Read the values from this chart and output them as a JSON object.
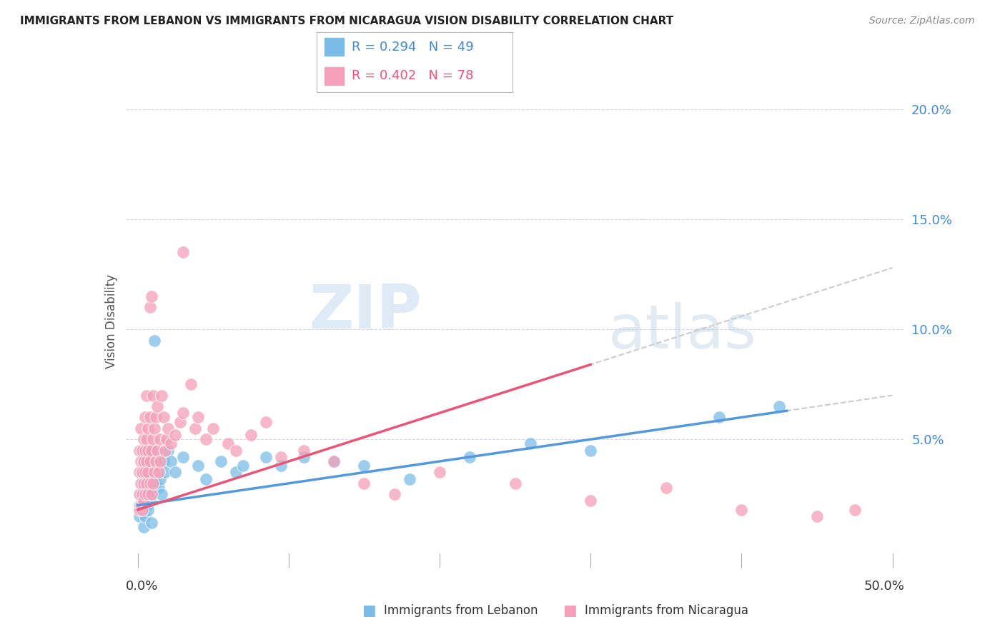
{
  "title": "IMMIGRANTS FROM LEBANON VS IMMIGRANTS FROM NICARAGUA VISION DISABILITY CORRELATION CHART",
  "source": "Source: ZipAtlas.com",
  "ylabel": "Vision Disability",
  "xlim": [
    0.0,
    0.5
  ],
  "ylim": [
    0.0,
    0.21
  ],
  "yticks": [
    0.0,
    0.05,
    0.1,
    0.15,
    0.2
  ],
  "ytick_labels": [
    "",
    "5.0%",
    "10.0%",
    "15.0%",
    "20.0%"
  ],
  "legend_r1": "R = 0.294",
  "legend_n1": "N = 49",
  "legend_r2": "R = 0.402",
  "legend_n2": "N = 78",
  "lebanon_color": "#7bbde8",
  "nicaragua_color": "#f4a0b8",
  "trendline_leb_color": "#5599dd",
  "trendline_nic_color": "#e85577",
  "trendline_dash_color": "#cccccc",
  "watermark_color": "#d5e8f5",
  "leb_pts": [
    [
      0.001,
      0.02
    ],
    [
      0.001,
      0.015
    ],
    [
      0.002,
      0.025
    ],
    [
      0.002,
      0.018
    ],
    [
      0.003,
      0.03
    ],
    [
      0.003,
      0.022
    ],
    [
      0.004,
      0.035
    ],
    [
      0.004,
      0.01
    ],
    [
      0.005,
      0.04
    ],
    [
      0.005,
      0.025
    ],
    [
      0.005,
      0.015
    ],
    [
      0.006,
      0.03
    ],
    [
      0.006,
      0.02
    ],
    [
      0.007,
      0.035
    ],
    [
      0.007,
      0.018
    ],
    [
      0.008,
      0.04
    ],
    [
      0.008,
      0.022
    ],
    [
      0.009,
      0.03
    ],
    [
      0.009,
      0.012
    ],
    [
      0.01,
      0.045
    ],
    [
      0.01,
      0.025
    ],
    [
      0.011,
      0.095
    ],
    [
      0.012,
      0.03
    ],
    [
      0.013,
      0.038
    ],
    [
      0.014,
      0.028
    ],
    [
      0.015,
      0.032
    ],
    [
      0.016,
      0.025
    ],
    [
      0.017,
      0.04
    ],
    [
      0.018,
      0.035
    ],
    [
      0.02,
      0.045
    ],
    [
      0.022,
      0.04
    ],
    [
      0.025,
      0.035
    ],
    [
      0.03,
      0.042
    ],
    [
      0.04,
      0.038
    ],
    [
      0.045,
      0.032
    ],
    [
      0.055,
      0.04
    ],
    [
      0.065,
      0.035
    ],
    [
      0.07,
      0.038
    ],
    [
      0.085,
      0.042
    ],
    [
      0.095,
      0.038
    ],
    [
      0.11,
      0.042
    ],
    [
      0.13,
      0.04
    ],
    [
      0.15,
      0.038
    ],
    [
      0.18,
      0.032
    ],
    [
      0.22,
      0.042
    ],
    [
      0.26,
      0.048
    ],
    [
      0.3,
      0.045
    ],
    [
      0.385,
      0.06
    ],
    [
      0.425,
      0.065
    ]
  ],
  "nic_pts": [
    [
      0.001,
      0.018
    ],
    [
      0.001,
      0.025
    ],
    [
      0.001,
      0.035
    ],
    [
      0.001,
      0.045
    ],
    [
      0.002,
      0.02
    ],
    [
      0.002,
      0.03
    ],
    [
      0.002,
      0.04
    ],
    [
      0.002,
      0.055
    ],
    [
      0.003,
      0.025
    ],
    [
      0.003,
      0.035
    ],
    [
      0.003,
      0.045
    ],
    [
      0.003,
      0.018
    ],
    [
      0.004,
      0.03
    ],
    [
      0.004,
      0.04
    ],
    [
      0.004,
      0.05
    ],
    [
      0.004,
      0.022
    ],
    [
      0.005,
      0.035
    ],
    [
      0.005,
      0.045
    ],
    [
      0.005,
      0.025
    ],
    [
      0.005,
      0.06
    ],
    [
      0.006,
      0.04
    ],
    [
      0.006,
      0.05
    ],
    [
      0.006,
      0.03
    ],
    [
      0.006,
      0.07
    ],
    [
      0.007,
      0.045
    ],
    [
      0.007,
      0.025
    ],
    [
      0.007,
      0.035
    ],
    [
      0.007,
      0.055
    ],
    [
      0.008,
      0.11
    ],
    [
      0.008,
      0.04
    ],
    [
      0.008,
      0.06
    ],
    [
      0.008,
      0.03
    ],
    [
      0.009,
      0.115
    ],
    [
      0.009,
      0.045
    ],
    [
      0.009,
      0.025
    ],
    [
      0.01,
      0.05
    ],
    [
      0.01,
      0.03
    ],
    [
      0.01,
      0.07
    ],
    [
      0.011,
      0.055
    ],
    [
      0.011,
      0.035
    ],
    [
      0.012,
      0.06
    ],
    [
      0.012,
      0.04
    ],
    [
      0.013,
      0.065
    ],
    [
      0.013,
      0.045
    ],
    [
      0.014,
      0.035
    ],
    [
      0.015,
      0.04
    ],
    [
      0.015,
      0.05
    ],
    [
      0.016,
      0.07
    ],
    [
      0.017,
      0.06
    ],
    [
      0.018,
      0.045
    ],
    [
      0.019,
      0.05
    ],
    [
      0.02,
      0.055
    ],
    [
      0.022,
      0.048
    ],
    [
      0.025,
      0.052
    ],
    [
      0.028,
      0.058
    ],
    [
      0.03,
      0.062
    ],
    [
      0.035,
      0.075
    ],
    [
      0.038,
      0.055
    ],
    [
      0.04,
      0.06
    ],
    [
      0.045,
      0.05
    ],
    [
      0.05,
      0.055
    ],
    [
      0.06,
      0.048
    ],
    [
      0.065,
      0.045
    ],
    [
      0.075,
      0.052
    ],
    [
      0.085,
      0.058
    ],
    [
      0.095,
      0.042
    ],
    [
      0.11,
      0.045
    ],
    [
      0.13,
      0.04
    ],
    [
      0.15,
      0.03
    ],
    [
      0.17,
      0.025
    ],
    [
      0.2,
      0.035
    ],
    [
      0.25,
      0.03
    ],
    [
      0.3,
      0.022
    ],
    [
      0.35,
      0.028
    ],
    [
      0.4,
      0.018
    ],
    [
      0.45,
      0.015
    ],
    [
      0.475,
      0.018
    ],
    [
      0.03,
      0.135
    ]
  ]
}
